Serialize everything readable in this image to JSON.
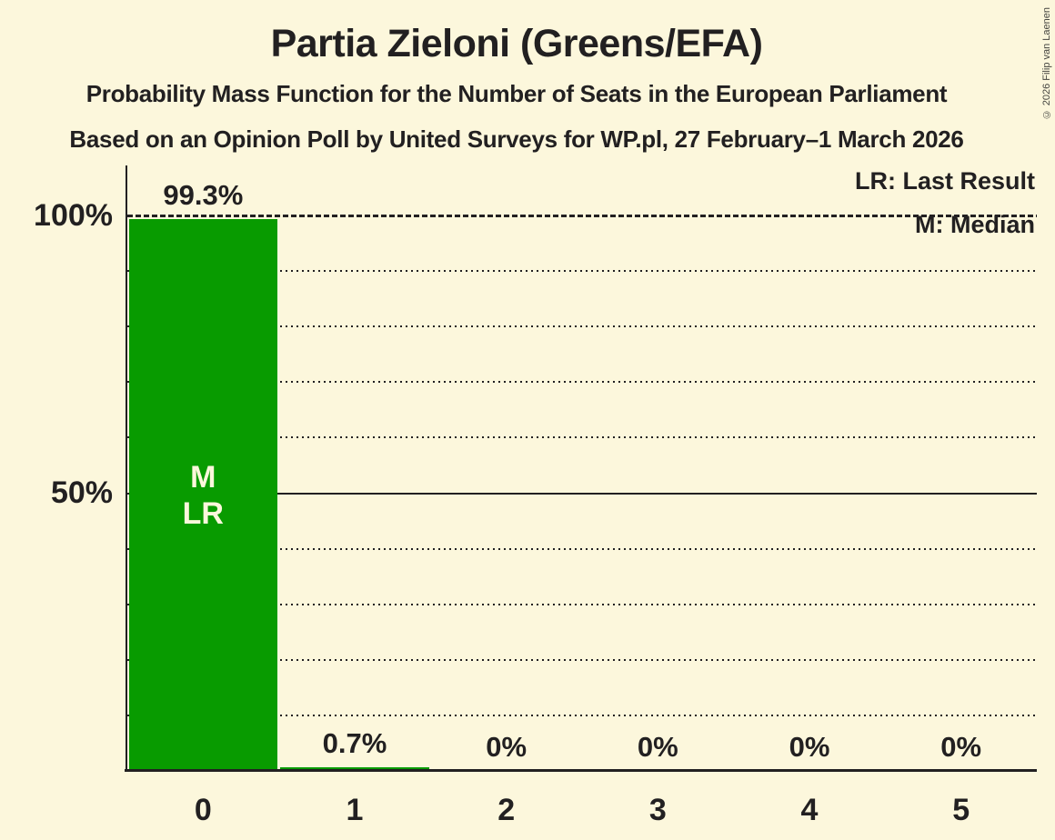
{
  "title": "Partia Zieloni (Greens/EFA)",
  "subtitle1": "Probability Mass Function for the Number of Seats in the European Parliament",
  "subtitle2": "Based on an Opinion Poll by United Surveys for WP.pl, 27 February–1 March 2026",
  "copyright": "© 2026 Filip van Laenen",
  "legend": {
    "lr": "LR: Last Result",
    "m": "M: Median"
  },
  "y_axis": {
    "top_label": "100%",
    "mid_label": "50%"
  },
  "colors": {
    "background": "#FCF7DC",
    "bar": "#089B00",
    "text": "#222021",
    "bar_annotation_text": "#FCF7DC"
  },
  "chart_data": {
    "type": "bar",
    "title": "Partia Zieloni (Greens/EFA)",
    "categories": [
      "0",
      "1",
      "2",
      "3",
      "4",
      "5"
    ],
    "values": [
      99.3,
      0.7,
      0,
      0,
      0,
      0
    ],
    "value_labels": [
      "99.3%",
      "0.7%",
      "0%",
      "0%",
      "0%",
      "0%"
    ],
    "xlabel": "",
    "ylabel": "",
    "ylim": [
      0,
      100
    ],
    "ytick_labels": [
      "100%",
      "50%"
    ],
    "gridlines": "dotted every 10%, solid at 50%, dashed at 100%",
    "legend_entries": [
      "LR: Last Result",
      "M: Median"
    ],
    "annotations": [
      {
        "seat_index": 0,
        "lines": [
          "M",
          "LR"
        ]
      }
    ],
    "median_seats": 0,
    "last_result_seats": 0
  }
}
